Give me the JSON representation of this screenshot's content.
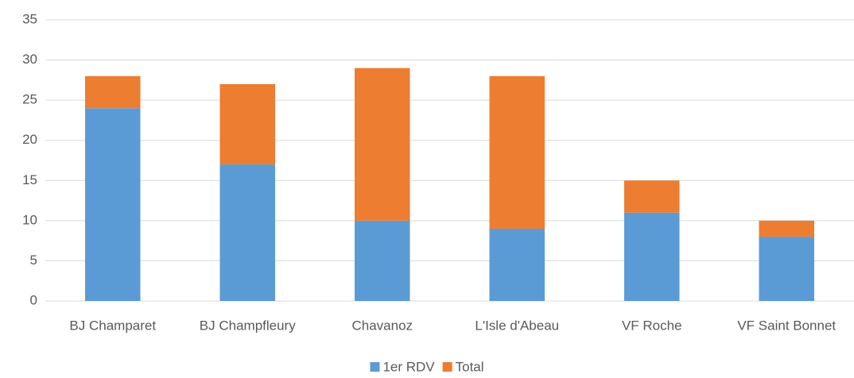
{
  "chart_data": {
    "type": "stacked_bar",
    "categories": [
      "BJ Champaret",
      "BJ Champfleury",
      "Chavanoz",
      "L'Isle d'Abeau",
      "VF Roche",
      "VF Saint Bonnet"
    ],
    "series": [
      {
        "name": "1er RDV",
        "color": "#5b9bd5",
        "values": [
          24,
          17,
          10,
          9,
          11,
          8
        ]
      },
      {
        "name": "Total",
        "color": "#ed7d31",
        "values": [
          4,
          10,
          19,
          19,
          4,
          2
        ]
      }
    ],
    "ylim": [
      0,
      35
    ],
    "yticks": [
      0,
      5,
      10,
      15,
      20,
      25,
      30,
      35
    ],
    "grid": true,
    "legend": "bottom"
  }
}
